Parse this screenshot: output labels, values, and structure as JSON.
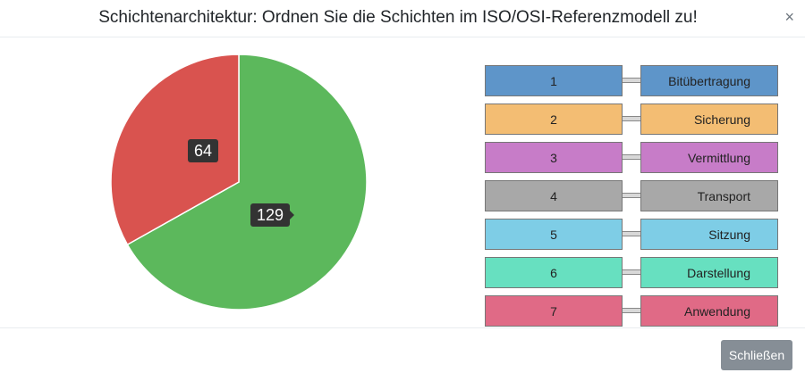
{
  "dialog": {
    "title": "Schichtenarchitektur: Ordnen Sie die Schichten im ISO/OSI-Referenzmodell zu!",
    "close_icon": "×",
    "footer_button": "Schließen"
  },
  "chart_data": {
    "type": "pie",
    "values": [
      129,
      64
    ],
    "colors": [
      "#5cb85c",
      "#d9534f"
    ],
    "data_labels": [
      "129",
      "64"
    ]
  },
  "layers": [
    {
      "number": "1",
      "name": "Bitübertragung",
      "color": "#5e95c9"
    },
    {
      "number": "2",
      "name": "Sicherung",
      "color": "#f3bd73"
    },
    {
      "number": "3",
      "name": "Vermittlung",
      "color": "#c77cc8"
    },
    {
      "number": "4",
      "name": "Transport",
      "color": "#a8a8a8"
    },
    {
      "number": "5",
      "name": "Sitzung",
      "color": "#7ecde6"
    },
    {
      "number": "6",
      "name": "Darstellung",
      "color": "#67e0c0"
    },
    {
      "number": "7",
      "name": "Anwendung",
      "color": "#e06a86"
    }
  ]
}
